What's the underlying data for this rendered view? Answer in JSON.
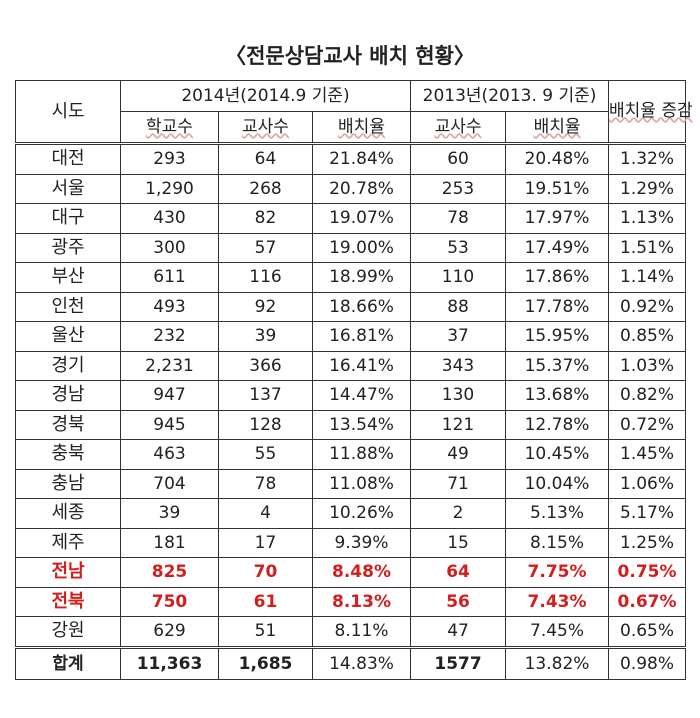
{
  "title": "〈전문상담교사 배치 현황〉",
  "header": {
    "region": "시도",
    "group_2014": "2014년(2014.9 기준)",
    "group_2013": "2013년(2013. 9 기준)",
    "increase": "배치율 증감",
    "schools": "학교수",
    "teachers_2014": "교사수",
    "rate_2014": "배치율",
    "teachers_2013": "교사수",
    "rate_2013": "배치율"
  },
  "rows": [
    {
      "region": "대전",
      "schools": "293",
      "t14": "64",
      "r14": "21.84%",
      "t13": "60",
      "r13": "20.48%",
      "inc": "1.32%"
    },
    {
      "region": "서울",
      "schools": "1,290",
      "t14": "268",
      "r14": "20.78%",
      "t13": "253",
      "r13": "19.51%",
      "inc": "1.29%"
    },
    {
      "region": "대구",
      "schools": "430",
      "t14": "82",
      "r14": "19.07%",
      "t13": "78",
      "r13": "17.97%",
      "inc": "1.13%"
    },
    {
      "region": "광주",
      "schools": "300",
      "t14": "57",
      "r14": "19.00%",
      "t13": "53",
      "r13": "17.49%",
      "inc": "1.51%"
    },
    {
      "region": "부산",
      "schools": "611",
      "t14": "116",
      "r14": "18.99%",
      "t13": "110",
      "r13": "17.86%",
      "inc": "1.14%"
    },
    {
      "region": "인천",
      "schools": "493",
      "t14": "92",
      "r14": "18.66%",
      "t13": "88",
      "r13": "17.78%",
      "inc": "0.92%"
    },
    {
      "region": "울산",
      "schools": "232",
      "t14": "39",
      "r14": "16.81%",
      "t13": "37",
      "r13": "15.95%",
      "inc": "0.85%"
    },
    {
      "region": "경기",
      "schools": "2,231",
      "t14": "366",
      "r14": "16.41%",
      "t13": "343",
      "r13": "15.37%",
      "inc": "1.03%"
    },
    {
      "region": "경남",
      "schools": "947",
      "t14": "137",
      "r14": "14.47%",
      "t13": "130",
      "r13": "13.68%",
      "inc": "0.82%"
    },
    {
      "region": "경북",
      "schools": "945",
      "t14": "128",
      "r14": "13.54%",
      "t13": "121",
      "r13": "12.78%",
      "inc": "0.72%"
    },
    {
      "region": "충북",
      "schools": "463",
      "t14": "55",
      "r14": "11.88%",
      "t13": "49",
      "r13": "10.45%",
      "inc": "1.45%"
    },
    {
      "region": "충남",
      "schools": "704",
      "t14": "78",
      "r14": "11.08%",
      "t13": "71",
      "r13": "10.04%",
      "inc": "1.06%"
    },
    {
      "region": "세종",
      "schools": "39",
      "t14": "4",
      "r14": "10.26%",
      "t13": "2",
      "r13": "5.13%",
      "inc": "5.17%"
    },
    {
      "region": "제주",
      "schools": "181",
      "t14": "17",
      "r14": "9.39%",
      "t13": "15",
      "r13": "8.15%",
      "inc": "1.25%"
    },
    {
      "region": "전남",
      "schools": "825",
      "t14": "70",
      "r14": "8.48%",
      "t13": "64",
      "r13": "7.75%",
      "inc": "0.75%"
    },
    {
      "region": "전북",
      "schools": "750",
      "t14": "61",
      "r14": "8.13%",
      "t13": "56",
      "r13": "7.43%",
      "inc": "0.67%"
    },
    {
      "region": "강원",
      "schools": "629",
      "t14": "51",
      "r14": "8.11%",
      "t13": "47",
      "r13": "7.45%",
      "inc": "0.65%"
    }
  ],
  "highlighted_regions": [
    "전남",
    "전북"
  ],
  "highlight_color": "#d41d1d",
  "total": {
    "region": "합계",
    "schools": "11,363",
    "t14": "1,685",
    "r14": "14.83%",
    "t13": "1577",
    "r13": "13.82%",
    "inc": "0.98%"
  }
}
